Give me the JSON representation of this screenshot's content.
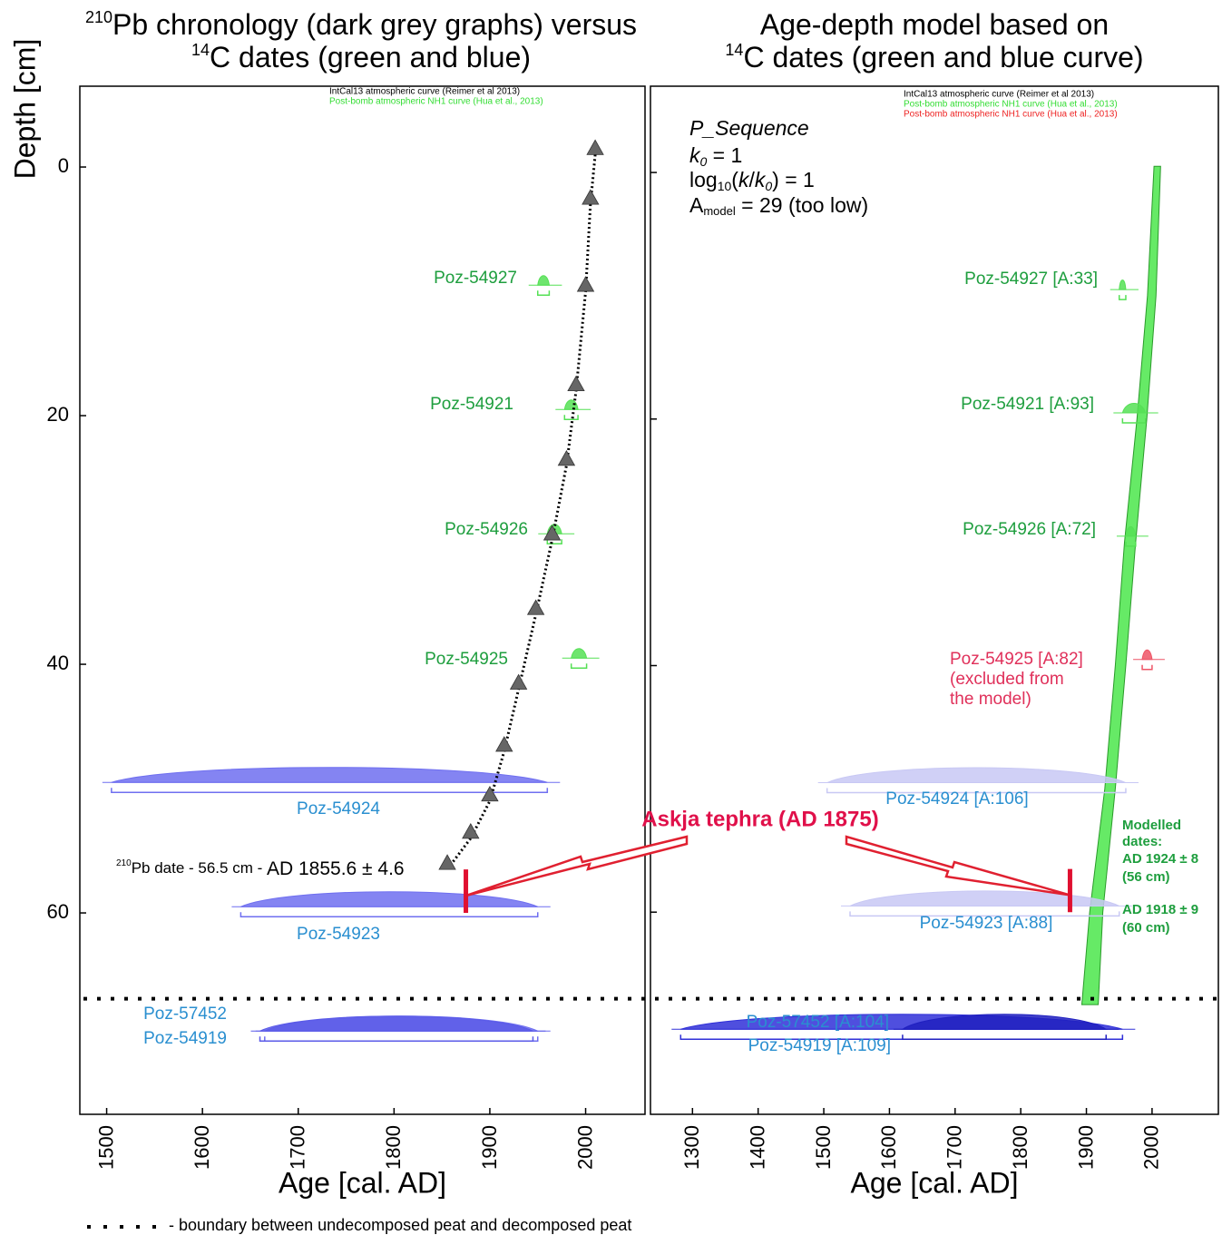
{
  "chart_data": [
    {
      "type": "age-depth",
      "title_lines": [
        [
          "210",
          "Pb chronology (dark grey graphs) versus"
        ],
        [
          "14",
          "C dates (green and blue)"
        ]
      ],
      "xlabel": "Age [cal. AD]",
      "ylabel": "Depth [cm]",
      "xlim": [
        1472,
        2062
      ],
      "ylim": [
        -6.5,
        76.2
      ],
      "xticks": [
        1500,
        1600,
        1700,
        1800,
        1900,
        2000
      ],
      "yticks": [
        0,
        20,
        40,
        60
      ],
      "curve_notes": [
        {
          "text": "IntCal13 atmospheric curve (Reimer et al 2013)",
          "color": "#000000"
        },
        {
          "text": "Post-bomb atmospheric NH1 curve (Hua et al., 2013)",
          "color": "#33dd33"
        }
      ],
      "samples": [
        {
          "name": "Poz-54927",
          "depth": 9.5,
          "spread": [
            1950,
            1962
          ],
          "color": "#55e055",
          "label_color": "#1e9e3e"
        },
        {
          "name": "Poz-54921",
          "depth": 19.5,
          "spread": [
            1978,
            1992
          ],
          "color": "#55e055",
          "label_color": "#1e9e3e"
        },
        {
          "name": "Poz-54926",
          "depth": 29.5,
          "spread": [
            1960,
            1975
          ],
          "color": "#55e055",
          "label_color": "#1e9e3e"
        },
        {
          "name": "Poz-54925",
          "depth": 39.5,
          "spread": [
            1985,
            2001
          ],
          "color": "#55e055",
          "label_color": "#1e9e3e"
        },
        {
          "name": "Poz-54924",
          "depth": 49.5,
          "spread": [
            1505,
            1960
          ],
          "color": "#6f6ff0",
          "label_color": "#2a8fd0"
        },
        {
          "name": "Poz-54923",
          "depth": 59.5,
          "spread": [
            1640,
            1950
          ],
          "color": "#6f6ff0",
          "label_color": "#2a8fd0"
        },
        {
          "name": "Poz-57452",
          "depth": 69.5,
          "spread": [
            1665,
            1950
          ],
          "color": "#6f6ff0",
          "label_color": "#2a8fd0"
        },
        {
          "name": "Poz-54919",
          "depth": 69.5,
          "spread": [
            1660,
            1945
          ],
          "color": "#5a5ae8",
          "label_color": "#2a8fd0"
        }
      ],
      "pb210": {
        "age": [
          2010,
          2005,
          2000,
          1990,
          1980,
          1965,
          1948,
          1930,
          1915,
          1900,
          1880,
          1855.6
        ],
        "depth": [
          -1,
          3,
          10,
          18,
          24,
          30,
          36,
          42,
          47,
          51,
          54,
          56.5
        ]
      },
      "pb_label": [
        "210",
        "Pb date - 56.5 cm - ",
        "AD 1855.6 ± 4.6"
      ]
    },
    {
      "type": "age-depth",
      "title_lines": [
        [
          "",
          "Age-depth model based on"
        ],
        [
          "14",
          "C dates (green and blue curve)"
        ]
      ],
      "xlabel": "Age [cal. AD]",
      "xlim": [
        1236,
        2101
      ],
      "ylim": [
        -7,
        76.4
      ],
      "xticks": [
        1300,
        1400,
        1500,
        1600,
        1700,
        1800,
        1900,
        2000
      ],
      "yticks": [
        0,
        20,
        40,
        60
      ],
      "curve_notes": [
        {
          "text": "IntCal13 atmospheric curve (Reimer et al 2013)",
          "color": "#000000"
        },
        {
          "text": "Post-bomb atmospheric NH1 curve (Hua et al., 2013)",
          "color": "#33dd33"
        },
        {
          "text": "Post-bomb atmospheric NH1 curve (Hua et al., 2013)",
          "color": "#ee2222"
        }
      ],
      "model_text": [
        [
          "P_Sequence"
        ],
        [
          "k",
          "0",
          " = 1"
        ],
        [
          "log",
          "10",
          "(",
          "k",
          "/",
          "k",
          "0",
          ") = 1"
        ],
        [
          "A",
          "model",
          " = 29 (too low)"
        ]
      ],
      "samples": [
        {
          "name": "Poz-54927 [A:33]",
          "depth": 9.5,
          "spread": [
            1950,
            1960
          ],
          "color": "#55e055",
          "label_color": "#1e9e3e"
        },
        {
          "name": "Poz-54921 [A:93]",
          "depth": 19.5,
          "spread": [
            1955,
            1990
          ],
          "color": "#55e055",
          "label_color": "#1e9e3e"
        },
        {
          "name": "Poz-54926 [A:72]",
          "depth": 29.5,
          "spread": [
            1960,
            1975
          ],
          "color": "#55e055",
          "label_color": "#1e9e3e"
        },
        {
          "name": "Poz-54925 [A:82]",
          "depth": 39.5,
          "spread": [
            1985,
            2000
          ],
          "color": "#ee5566",
          "label_color": "#e0305a",
          "note": [
            "(excluded from",
            "the model)"
          ]
        },
        {
          "name": "Poz-54924 [A:106]",
          "depth": 49.5,
          "spread": [
            1505,
            1960
          ],
          "color": "#c8c8f4",
          "label_color": "#2a8fd0"
        },
        {
          "name": "Poz-54923 [A:88]",
          "depth": 59.5,
          "spread": [
            1540,
            1950
          ],
          "color": "#c8c8f4",
          "label_color": "#2a8fd0"
        },
        {
          "name": "Poz-57452 [A:104]",
          "depth": 69.5,
          "spread": [
            1282,
            1955
          ],
          "color": "#3030d8",
          "label_color": "#2a8fd0"
        },
        {
          "name": "Poz-54919 [A:109]",
          "depth": 69.5,
          "spread": [
            1620,
            1930
          ],
          "color": "#2020c0",
          "label_color": "#2a8fd0"
        }
      ],
      "envelope": {
        "depth": [
          -0.5,
          10,
          20,
          30,
          40,
          50,
          60,
          67.5
        ],
        "age_min": [
          2003,
          1993,
          1977,
          1958,
          1944,
          1928,
          1905,
          1893
        ],
        "age_max": [
          2013,
          2006,
          1992,
          1975,
          1960,
          1944,
          1925,
          1918
        ]
      },
      "modelled": [
        "Modelled",
        "dates:",
        "AD 1924 ± 8",
        "(56 cm)",
        "AD 1918 ± 9",
        "(60 cm)"
      ]
    }
  ],
  "annotation": {
    "text": "Askja tephra (AD 1875)",
    "age": 1875,
    "depth": [
      56.5,
      60
    ]
  },
  "boundary_depth": 66.9,
  "footnote": "- boundary between undecomposed peat and decomposed peat"
}
